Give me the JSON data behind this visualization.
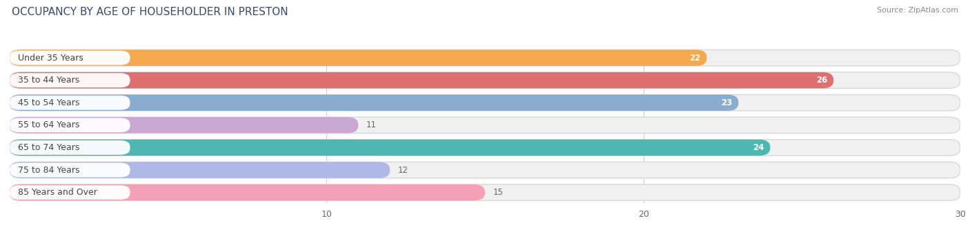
{
  "title": "OCCUPANCY BY AGE OF HOUSEHOLDER IN PRESTON",
  "source": "Source: ZipAtlas.com",
  "categories": [
    "Under 35 Years",
    "35 to 44 Years",
    "45 to 54 Years",
    "55 to 64 Years",
    "65 to 74 Years",
    "75 to 84 Years",
    "85 Years and Over"
  ],
  "values": [
    22,
    26,
    23,
    11,
    24,
    12,
    15
  ],
  "bar_colors": [
    "#f5a94e",
    "#e07070",
    "#8aaccf",
    "#c9a8d4",
    "#4db8b2",
    "#b0b8e8",
    "#f4a0b5"
  ],
  "value_fontsize": 8.5,
  "label_fontsize": 9,
  "title_fontsize": 11,
  "xlim_data": 30,
  "xticks": [
    10,
    20,
    30
  ],
  "bar_height": 0.72,
  "row_bg_color": "#f0f0f0",
  "row_border_color": "#d8d8d8",
  "grid_color": "#cccccc",
  "title_color": "#3a4a6b",
  "source_color": "#888888",
  "label_text_color": "#444444",
  "value_inside_color": "#ffffff",
  "value_outside_color": "#666666"
}
